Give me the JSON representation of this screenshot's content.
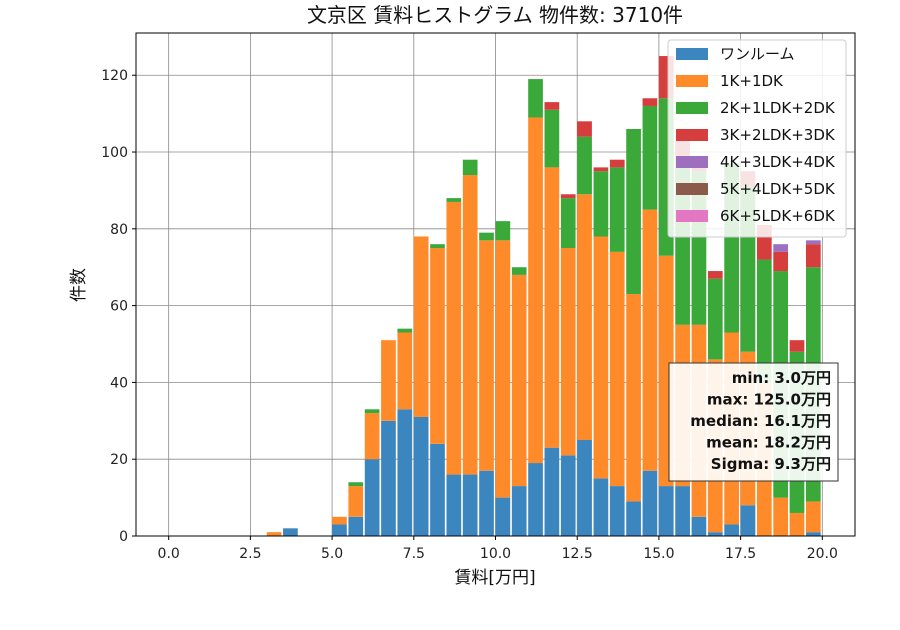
{
  "chart_data": {
    "type": "bar",
    "stacked": true,
    "title": "文京区 賃料ヒストグラム 物件数: 3710件",
    "xlabel": "賃料[万円]",
    "ylabel": "件数",
    "xlim": [
      -1.0,
      21.0
    ],
    "ylim": [
      0,
      131
    ],
    "xticks": [
      "0.0",
      "2.5",
      "5.0",
      "7.5",
      "10.0",
      "12.5",
      "15.0",
      "17.5",
      "20.0"
    ],
    "xtick_values": [
      0,
      2.5,
      5,
      7.5,
      10,
      12.5,
      15,
      17.5,
      20
    ],
    "yticks": [
      "0",
      "20",
      "40",
      "60",
      "80",
      "100",
      "120"
    ],
    "ytick_values": [
      0,
      20,
      40,
      60,
      80,
      100,
      120
    ],
    "grid": true,
    "legend_position": "top-right",
    "bin_width": 0.5,
    "x": [
      3.0,
      3.5,
      4.0,
      4.5,
      5.0,
      5.5,
      6.0,
      6.5,
      7.0,
      7.5,
      8.0,
      8.5,
      9.0,
      9.5,
      10.0,
      10.5,
      11.0,
      11.5,
      12.0,
      12.5,
      13.0,
      13.5,
      14.0,
      14.5,
      15.0,
      15.5,
      16.0,
      16.5,
      17.0,
      17.5,
      18.0,
      18.5,
      19.0,
      19.5
    ],
    "series": [
      {
        "name": "ワンルーム",
        "color": "#3c86c0",
        "values": [
          0,
          2,
          0,
          0,
          3,
          5,
          20,
          30,
          33,
          31,
          24,
          16,
          16,
          17,
          10,
          13,
          19,
          23,
          21,
          25,
          15,
          13,
          9,
          17,
          13,
          13,
          5,
          1,
          3,
          8,
          0,
          0,
          0,
          1
        ]
      },
      {
        "name": "1K+1DK",
        "color": "#ff8a29",
        "values": [
          1,
          0,
          0,
          0,
          2,
          8,
          12,
          21,
          20,
          47,
          51,
          71,
          78,
          60,
          67,
          55,
          90,
          73,
          54,
          64,
          63,
          61,
          54,
          68,
          60,
          42,
          50,
          45,
          50,
          40,
          40,
          10,
          6,
          8
        ]
      },
      {
        "name": "2K+1LDK+2DK",
        "color": "#3ba83a",
        "values": [
          0,
          0,
          0,
          0,
          0,
          1,
          1,
          0,
          1,
          0,
          1,
          1,
          4,
          2,
          5,
          2,
          10,
          15,
          13,
          15,
          17,
          22,
          43,
          27,
          41,
          44,
          40,
          21,
          44,
          43,
          32,
          59,
          42,
          61
        ]
      },
      {
        "name": "3K+2LDK+3DK",
        "color": "#d63d3d",
        "values": [
          0,
          0,
          0,
          0,
          0,
          0,
          0,
          0,
          0,
          0,
          0,
          0,
          0,
          0,
          0,
          0,
          0,
          2,
          1,
          4,
          1,
          2,
          0,
          2,
          11,
          4,
          2,
          2,
          0,
          4,
          9,
          5,
          3,
          6
        ]
      },
      {
        "name": "4K+3LDK+4DK",
        "color": "#9e6ebf",
        "values": [
          0,
          0,
          0,
          0,
          0,
          0,
          0,
          0,
          0,
          0,
          0,
          0,
          0,
          0,
          0,
          0,
          0,
          0,
          0,
          0,
          0,
          0,
          0,
          0,
          0,
          0,
          0,
          0,
          0,
          0,
          0,
          2,
          0,
          1
        ]
      },
      {
        "name": "5K+4LDK+5DK",
        "color": "#8c5a4b",
        "values": [
          0,
          0,
          0,
          0,
          0,
          0,
          0,
          0,
          0,
          0,
          0,
          0,
          0,
          0,
          0,
          0,
          0,
          0,
          0,
          0,
          0,
          0,
          0,
          0,
          0,
          0,
          0,
          0,
          0,
          0,
          0,
          0,
          0,
          0
        ]
      },
      {
        "name": "6K+5LDK+6DK",
        "color": "#e377c2",
        "values": [
          0,
          0,
          0,
          0,
          0,
          0,
          0,
          0,
          0,
          0,
          0,
          0,
          0,
          0,
          0,
          0,
          0,
          0,
          0,
          0,
          0,
          0,
          0,
          0,
          0,
          0,
          0,
          0,
          0,
          0,
          0,
          0,
          0,
          0
        ]
      }
    ],
    "stats_box": {
      "lines": [
        "min: 3.0万円",
        "max: 125.0万円",
        "median: 16.1万円",
        "mean: 18.2万円",
        "Sigma: 9.3万円"
      ]
    }
  }
}
